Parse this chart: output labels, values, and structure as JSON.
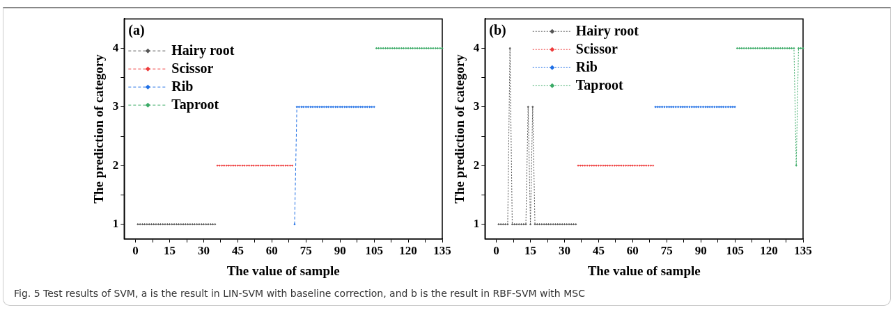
{
  "chart_data": [
    {
      "type": "line",
      "xlabel": "The value of sample",
      "ylabel": "The prediction of category",
      "xlim": [
        -5,
        135
      ],
      "ylim": [
        0.75,
        4.5
      ],
      "xticks": [
        0,
        15,
        30,
        45,
        60,
        75,
        90,
        105,
        120,
        135,
        {
          "value": 7.5,
          "label": null
        },
        {
          "value": 22.5,
          "label": null
        },
        {
          "value": 37.5,
          "label": null
        },
        {
          "value": 52.5,
          "label": null
        },
        {
          "value": 67.5,
          "label": null
        },
        {
          "value": 82.5,
          "label": null
        },
        {
          "value": 97.5,
          "label": null
        },
        {
          "value": 112.5,
          "label": null
        },
        {
          "value": 127.5,
          "label": null
        }
      ],
      "yticks": [
        1,
        2,
        3,
        4,
        {
          "value": 1.5,
          "label": null
        },
        {
          "value": 2.5,
          "label": null
        },
        {
          "value": 3.5,
          "label": null
        }
      ],
      "legend": "top left",
      "marker": "diamond",
      "line_style": "dashed",
      "annotations": [
        "(a)",
        "Fig. 5  Test results of SVM, a is the result in LIN-SVM with baseline correction, and b is the result in RBF-SVM with MSC"
      ],
      "series": [
        {
          "name": "Hairy root",
          "color": "#555555",
          "x": [
            1,
            2,
            3,
            4,
            5,
            6,
            7,
            8,
            9,
            10,
            11,
            12,
            13,
            14,
            15,
            16,
            17,
            18,
            19,
            20,
            21,
            22,
            23,
            24,
            25,
            26,
            27,
            28,
            29,
            30,
            31,
            32,
            33,
            34,
            35
          ],
          "values": [
            1,
            1,
            1,
            1,
            1,
            1,
            1,
            1,
            1,
            1,
            1,
            1,
            1,
            1,
            1,
            1,
            1,
            1,
            1,
            1,
            1,
            1,
            1,
            1,
            1,
            1,
            1,
            1,
            1,
            1,
            1,
            1,
            1,
            1,
            1
          ]
        },
        {
          "name": "Scissor",
          "color": "#ee3b3b",
          "x": [
            36,
            37,
            38,
            39,
            40,
            41,
            42,
            43,
            44,
            45,
            46,
            47,
            48,
            49,
            50,
            51,
            52,
            53,
            54,
            55,
            56,
            57,
            58,
            59,
            60,
            61,
            62,
            63,
            64,
            65,
            66,
            67,
            68,
            69
          ],
          "values": [
            2,
            2,
            2,
            2,
            2,
            2,
            2,
            2,
            2,
            2,
            2,
            2,
            2,
            2,
            2,
            2,
            2,
            2,
            2,
            2,
            2,
            2,
            2,
            2,
            2,
            2,
            2,
            2,
            2,
            2,
            2,
            2,
            2,
            2
          ]
        },
        {
          "name": "Rib",
          "color": "#1f6fe5",
          "x": [
            70,
            71,
            72,
            73,
            74,
            75,
            76,
            77,
            78,
            79,
            80,
            81,
            82,
            83,
            84,
            85,
            86,
            87,
            88,
            89,
            90,
            91,
            92,
            93,
            94,
            95,
            96,
            97,
            98,
            99,
            100,
            101,
            102,
            103,
            104,
            105
          ],
          "values": [
            1,
            3,
            3,
            3,
            3,
            3,
            3,
            3,
            3,
            3,
            3,
            3,
            3,
            3,
            3,
            3,
            3,
            3,
            3,
            3,
            3,
            3,
            3,
            3,
            3,
            3,
            3,
            3,
            3,
            3,
            3,
            3,
            3,
            3,
            3,
            3
          ]
        },
        {
          "name": "Taproot",
          "color": "#3aaa66",
          "x": [
            106,
            107,
            108,
            109,
            110,
            111,
            112,
            113,
            114,
            115,
            116,
            117,
            118,
            119,
            120,
            121,
            122,
            123,
            124,
            125,
            126,
            127,
            128,
            129,
            130,
            131,
            132,
            133,
            134,
            135
          ],
          "values": [
            4,
            4,
            4,
            4,
            4,
            4,
            4,
            4,
            4,
            4,
            4,
            4,
            4,
            4,
            4,
            4,
            4,
            4,
            4,
            4,
            4,
            4,
            4,
            4,
            4,
            4,
            4,
            4,
            4,
            4
          ]
        }
      ]
    },
    {
      "type": "line",
      "xlabel": "The value of sample",
      "ylabel": "The prediction of category",
      "xlim": [
        -5,
        135
      ],
      "ylim": [
        0.75,
        4.5
      ],
      "xticks": [
        0,
        15,
        30,
        45,
        60,
        75,
        90,
        105,
        120,
        135,
        {
          "value": 7.5,
          "label": null
        },
        {
          "value": 22.5,
          "label": null
        },
        {
          "value": 37.5,
          "label": null
        },
        {
          "value": 52.5,
          "label": null
        },
        {
          "value": 67.5,
          "label": null
        },
        {
          "value": 82.5,
          "label": null
        },
        {
          "value": 97.5,
          "label": null
        },
        {
          "value": 112.5,
          "label": null
        },
        {
          "value": 127.5,
          "label": null
        }
      ],
      "yticks": [
        1,
        2,
        3,
        4,
        {
          "value": 1.5,
          "label": null
        },
        {
          "value": 2.5,
          "label": null
        },
        {
          "value": 3.5,
          "label": null
        }
      ],
      "legend": "top",
      "marker": "diamond",
      "line_style": "dotted",
      "annotations": [
        "(b)"
      ],
      "series": [
        {
          "name": "Hairy root",
          "color": "#555555",
          "x": [
            1,
            2,
            3,
            4,
            5,
            6,
            7,
            8,
            9,
            10,
            11,
            12,
            13,
            14,
            15,
            16,
            17,
            18,
            19,
            20,
            21,
            22,
            23,
            24,
            25,
            26,
            27,
            28,
            29,
            30,
            31,
            32,
            33,
            34,
            35
          ],
          "values": [
            1,
            1,
            1,
            1,
            1,
            4,
            1,
            1,
            1,
            1,
            1,
            1,
            1,
            3,
            1,
            3,
            1,
            1,
            1,
            1,
            1,
            1,
            1,
            1,
            1,
            1,
            1,
            1,
            1,
            1,
            1,
            1,
            1,
            1,
            1
          ]
        },
        {
          "name": "Scissor",
          "color": "#ee3b3b",
          "x": [
            36,
            37,
            38,
            39,
            40,
            41,
            42,
            43,
            44,
            45,
            46,
            47,
            48,
            49,
            50,
            51,
            52,
            53,
            54,
            55,
            56,
            57,
            58,
            59,
            60,
            61,
            62,
            63,
            64,
            65,
            66,
            67,
            68,
            69
          ],
          "values": [
            2,
            2,
            2,
            2,
            2,
            2,
            2,
            2,
            2,
            2,
            2,
            2,
            2,
            2,
            2,
            2,
            2,
            2,
            2,
            2,
            2,
            2,
            2,
            2,
            2,
            2,
            2,
            2,
            2,
            2,
            2,
            2,
            2,
            2
          ]
        },
        {
          "name": "Rib",
          "color": "#1f6fe5",
          "x": [
            70,
            71,
            72,
            73,
            74,
            75,
            76,
            77,
            78,
            79,
            80,
            81,
            82,
            83,
            84,
            85,
            86,
            87,
            88,
            89,
            90,
            91,
            92,
            93,
            94,
            95,
            96,
            97,
            98,
            99,
            100,
            101,
            102,
            103,
            104,
            105
          ],
          "values": [
            3,
            3,
            3,
            3,
            3,
            3,
            3,
            3,
            3,
            3,
            3,
            3,
            3,
            3,
            3,
            3,
            3,
            3,
            3,
            3,
            3,
            3,
            3,
            3,
            3,
            3,
            3,
            3,
            3,
            3,
            3,
            3,
            3,
            3,
            3,
            3
          ]
        },
        {
          "name": "Taproot",
          "color": "#3aaa66",
          "x": [
            106,
            107,
            108,
            109,
            110,
            111,
            112,
            113,
            114,
            115,
            116,
            117,
            118,
            119,
            120,
            121,
            122,
            123,
            124,
            125,
            126,
            127,
            128,
            129,
            130,
            131,
            132,
            133,
            134,
            135
          ],
          "values": [
            4,
            4,
            4,
            4,
            4,
            4,
            4,
            4,
            4,
            4,
            4,
            4,
            4,
            4,
            4,
            4,
            4,
            4,
            4,
            4,
            4,
            4,
            4,
            4,
            4,
            4,
            2,
            4,
            4,
            4
          ]
        }
      ]
    }
  ]
}
